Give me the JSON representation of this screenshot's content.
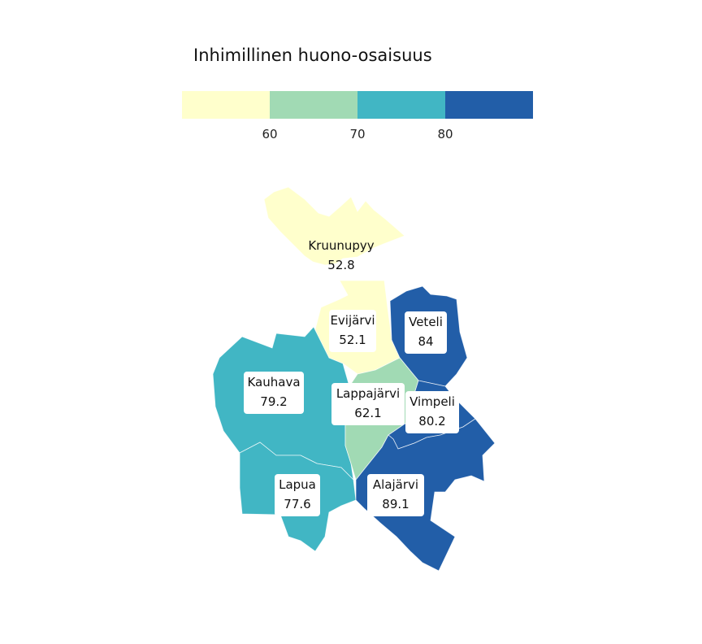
{
  "legend": {
    "title": "Inhimillinen huono-osaisuus",
    "breaks": [
      "60",
      "70",
      "80"
    ],
    "colors": [
      "#ffffcc",
      "#a1dab4",
      "#41b6c4",
      "#225ea8"
    ]
  },
  "regions": [
    {
      "id": "kruunupyy",
      "name": "Kruunupyy",
      "value": "52.8",
      "color": "#ffffcc",
      "boxed": false
    },
    {
      "id": "evijarvi",
      "name": "Evijärvi",
      "value": "52.1",
      "color": "#ffffcc",
      "boxed": true
    },
    {
      "id": "veteli",
      "name": "Veteli",
      "value": "84",
      "color": "#225ea8",
      "boxed": true
    },
    {
      "id": "kauhava",
      "name": "Kauhava",
      "value": "79.2",
      "color": "#41b6c4",
      "boxed": true
    },
    {
      "id": "lappajarvi",
      "name": "Lappajärvi",
      "value": "62.1",
      "color": "#a1dab4",
      "boxed": true
    },
    {
      "id": "vimpeli",
      "name": "Vimpeli",
      "value": "80.2",
      "color": "#225ea8",
      "boxed": true
    },
    {
      "id": "lapua",
      "name": "Lapua",
      "value": "77.6",
      "color": "#41b6c4",
      "boxed": true
    },
    {
      "id": "alajarvi",
      "name": "Alajärvi",
      "value": "89.1",
      "color": "#225ea8",
      "boxed": true
    }
  ]
}
